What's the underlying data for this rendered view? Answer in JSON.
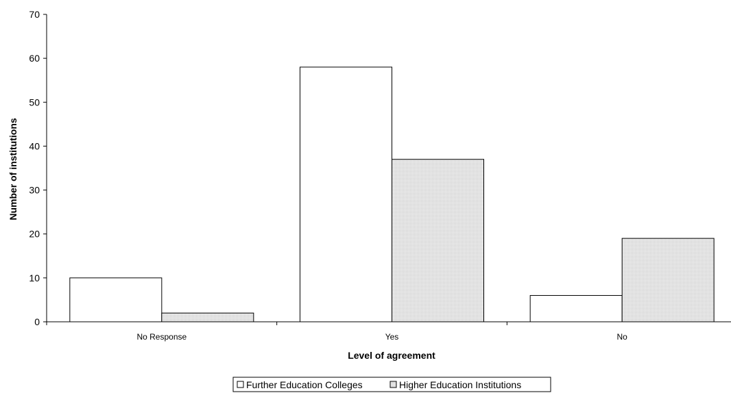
{
  "chart_data": {
    "type": "bar",
    "categories": [
      "No Response",
      "Yes",
      "No"
    ],
    "series": [
      {
        "name": "Further Education Colleges",
        "values": [
          10,
          58,
          6
        ],
        "color": "#ffffff"
      },
      {
        "name": "Higher Education Institutions",
        "values": [
          2,
          37,
          19
        ],
        "color": "#e0e0e0"
      }
    ],
    "xlabel": "Level of agreement",
    "ylabel": "Number of institutions",
    "ylim": [
      0,
      70
    ],
    "yticks": [
      0,
      10,
      20,
      30,
      40,
      50,
      60,
      70
    ],
    "grid": false,
    "legend_position": "bottom"
  }
}
